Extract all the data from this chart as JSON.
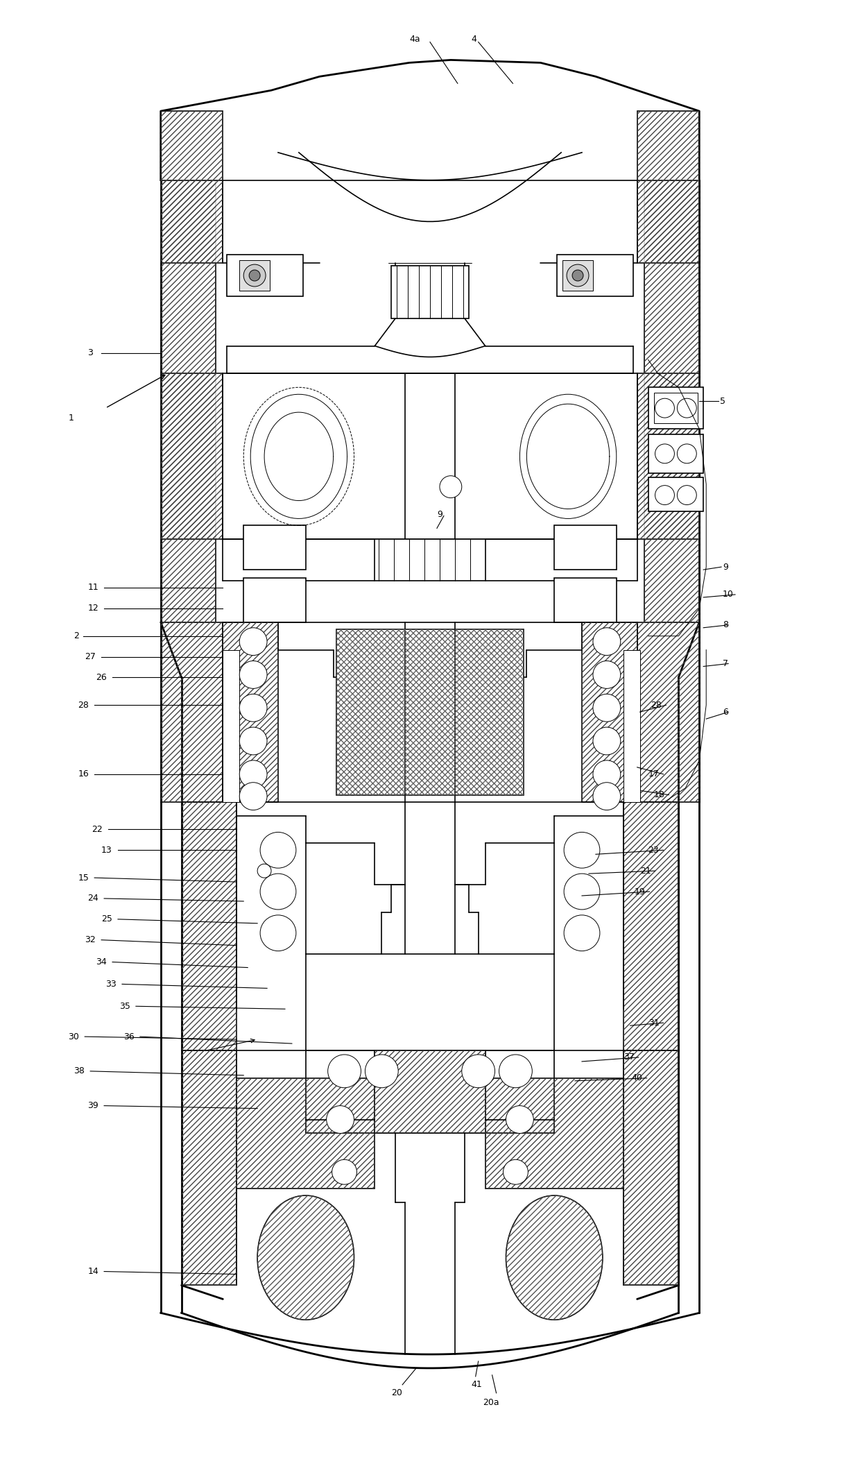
{
  "bg_color": "#ffffff",
  "line_color": "#000000",
  "fig_w": 12.4,
  "fig_h": 21.36,
  "dpi": 100
}
